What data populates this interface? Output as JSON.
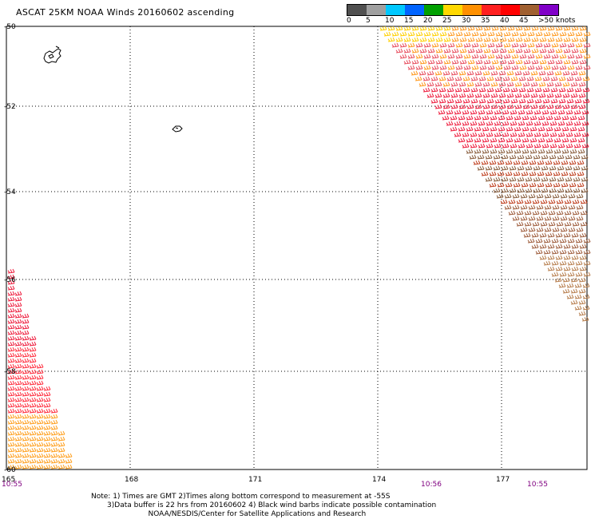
{
  "title": "ASCAT 25KM NOAA Winds 20160602 ascending",
  "legend": {
    "labels": [
      "0",
      "5",
      "10",
      "15",
      "20",
      "25",
      "30",
      "35",
      "40",
      "45",
      ">50 knots"
    ],
    "colors": [
      "#505050",
      "#a0a0a0",
      "#00c8ff",
      "#0064ff",
      "#00a000",
      "#ffd800",
      "#ff9000",
      "#ff2020",
      "#ff0000",
      "#a06030",
      "#8000c8",
      "#500080"
    ]
  },
  "lat_labels": [
    "-50",
    "-52",
    "-54",
    "-56",
    "-58",
    "-60"
  ],
  "lon_labels": [
    "165",
    "168",
    "171",
    "174",
    "177"
  ],
  "times": [
    {
      "label": "10:55",
      "color": "#800080"
    },
    {
      "label": "10:56",
      "color": "#800080"
    },
    {
      "label": "10:55",
      "color": "#800080"
    }
  ],
  "notes": [
    "Note: 1) Times are GMT 2)Times along bottom correspond to measurement at -55S",
    "       3)Data buffer is 22 hrs from 20160602 4) Black wind barbs indicate possible contamination",
    "                         NOAA/NESDIS/Center for Satellite Applications and Research"
  ],
  "map_data": {
    "lat_range": [
      -60,
      -50
    ],
    "lon_range": [
      165,
      179.2
    ],
    "islands": [
      "Auckland Islands",
      "Campbell Island"
    ]
  }
}
